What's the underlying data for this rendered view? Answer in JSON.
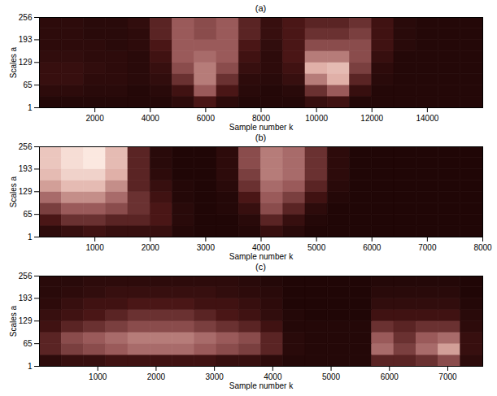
{
  "chart_data": [
    {
      "type": "heatmap",
      "title": "(a)",
      "x_label": "Sample number k",
      "y_label": "Scales a",
      "xlim": [
        0,
        16000
      ],
      "ylim": [
        1,
        256
      ],
      "xticks": [
        2000,
        4000,
        6000,
        8000,
        10000,
        12000,
        14000
      ],
      "yticks": [
        1,
        65,
        129,
        193,
        256
      ],
      "zlim": [
        0,
        1
      ],
      "xbins": [
        0,
        800,
        1600,
        2400,
        3200,
        4000,
        4800,
        5600,
        6400,
        7200,
        8000,
        8800,
        9600,
        10400,
        11200,
        12000,
        12800,
        13600,
        14400,
        15200,
        16000
      ],
      "ybins": [
        1,
        33,
        65,
        97,
        129,
        161,
        193,
        225,
        256
      ],
      "values": [
        [
          0.05,
          0.05,
          0.05,
          0.05,
          0.05,
          0.05,
          0.1,
          0.25,
          0.1,
          0.05,
          0.05,
          0.05,
          0.15,
          0.2,
          0.05,
          0.05,
          0.05,
          0.05,
          0.05,
          0.05
        ],
        [
          0.1,
          0.1,
          0.08,
          0.08,
          0.05,
          0.08,
          0.2,
          0.5,
          0.25,
          0.08,
          0.05,
          0.08,
          0.35,
          0.5,
          0.15,
          0.05,
          0.05,
          0.05,
          0.05,
          0.05
        ],
        [
          0.15,
          0.15,
          0.1,
          0.1,
          0.08,
          0.12,
          0.35,
          0.6,
          0.35,
          0.1,
          0.08,
          0.15,
          0.6,
          0.75,
          0.3,
          0.08,
          0.05,
          0.05,
          0.05,
          0.05
        ],
        [
          0.15,
          0.15,
          0.12,
          0.1,
          0.08,
          0.15,
          0.45,
          0.6,
          0.45,
          0.15,
          0.1,
          0.2,
          0.75,
          0.8,
          0.4,
          0.1,
          0.05,
          0.05,
          0.05,
          0.05
        ],
        [
          0.12,
          0.12,
          0.1,
          0.1,
          0.08,
          0.2,
          0.5,
          0.55,
          0.5,
          0.2,
          0.1,
          0.25,
          0.6,
          0.6,
          0.45,
          0.15,
          0.05,
          0.05,
          0.05,
          0.05
        ],
        [
          0.1,
          0.1,
          0.1,
          0.08,
          0.1,
          0.25,
          0.5,
          0.5,
          0.5,
          0.25,
          0.12,
          0.25,
          0.45,
          0.45,
          0.45,
          0.2,
          0.08,
          0.05,
          0.05,
          0.05
        ],
        [
          0.1,
          0.1,
          0.08,
          0.08,
          0.1,
          0.3,
          0.5,
          0.45,
          0.5,
          0.3,
          0.15,
          0.25,
          0.35,
          0.35,
          0.4,
          0.2,
          0.08,
          0.05,
          0.05,
          0.05
        ],
        [
          0.1,
          0.1,
          0.08,
          0.08,
          0.12,
          0.3,
          0.5,
          0.45,
          0.5,
          0.3,
          0.15,
          0.25,
          0.3,
          0.3,
          0.35,
          0.2,
          0.08,
          0.05,
          0.05,
          0.05
        ]
      ]
    },
    {
      "type": "heatmap",
      "title": "(b)",
      "x_label": "Sample number k",
      "y_label": "Scales a",
      "xlim": [
        0,
        8000
      ],
      "ylim": [
        1,
        256
      ],
      "xticks": [
        1000,
        2000,
        3000,
        4000,
        5000,
        6000,
        7000,
        8000
      ],
      "yticks": [
        1,
        65,
        129,
        193,
        256
      ],
      "zlim": [
        0,
        1
      ],
      "xbins": [
        0,
        400,
        800,
        1200,
        1600,
        2000,
        2400,
        2800,
        3200,
        3600,
        4000,
        4400,
        4800,
        5200,
        5600,
        6000,
        6400,
        6800,
        7200,
        7600,
        8000
      ],
      "ybins": [
        1,
        33,
        65,
        97,
        129,
        161,
        193,
        225,
        256
      ],
      "values": [
        [
          0.1,
          0.15,
          0.2,
          0.15,
          0.15,
          0.15,
          0.05,
          0.03,
          0.03,
          0.05,
          0.15,
          0.08,
          0.03,
          0.03,
          0.03,
          0.03,
          0.03,
          0.03,
          0.03,
          0.03
        ],
        [
          0.25,
          0.35,
          0.35,
          0.3,
          0.3,
          0.25,
          0.08,
          0.03,
          0.03,
          0.08,
          0.3,
          0.15,
          0.05,
          0.03,
          0.03,
          0.03,
          0.03,
          0.03,
          0.03,
          0.03
        ],
        [
          0.4,
          0.5,
          0.5,
          0.45,
          0.35,
          0.25,
          0.08,
          0.03,
          0.05,
          0.15,
          0.45,
          0.3,
          0.1,
          0.03,
          0.03,
          0.03,
          0.03,
          0.03,
          0.03,
          0.03
        ],
        [
          0.55,
          0.65,
          0.65,
          0.55,
          0.35,
          0.2,
          0.05,
          0.03,
          0.05,
          0.25,
          0.5,
          0.4,
          0.2,
          0.05,
          0.03,
          0.03,
          0.03,
          0.03,
          0.03,
          0.03
        ],
        [
          0.7,
          0.8,
          0.8,
          0.65,
          0.3,
          0.15,
          0.05,
          0.03,
          0.08,
          0.35,
          0.55,
          0.5,
          0.3,
          0.08,
          0.03,
          0.03,
          0.03,
          0.03,
          0.03,
          0.03
        ],
        [
          0.8,
          0.9,
          0.9,
          0.75,
          0.3,
          0.1,
          0.03,
          0.03,
          0.1,
          0.4,
          0.6,
          0.55,
          0.35,
          0.1,
          0.03,
          0.03,
          0.03,
          0.03,
          0.03,
          0.03
        ],
        [
          0.85,
          0.95,
          1,
          0.8,
          0.3,
          0.08,
          0.03,
          0.03,
          0.1,
          0.45,
          0.6,
          0.55,
          0.35,
          0.1,
          0.03,
          0.03,
          0.03,
          0.03,
          0.03,
          0.03
        ],
        [
          0.85,
          0.95,
          1,
          0.8,
          0.3,
          0.08,
          0.03,
          0.03,
          0.1,
          0.45,
          0.6,
          0.55,
          0.35,
          0.1,
          0.03,
          0.03,
          0.03,
          0.03,
          0.03,
          0.03
        ]
      ]
    },
    {
      "type": "heatmap",
      "title": "(c)",
      "x_label": "Sample number k",
      "y_label": "Scales a",
      "xlim": [
        0,
        7600
      ],
      "ylim": [
        1,
        256
      ],
      "xticks": [
        1000,
        2000,
        3000,
        4000,
        5000,
        6000,
        7000
      ],
      "yticks": [
        1,
        65,
        129,
        193,
        256
      ],
      "zlim": [
        0,
        1
      ],
      "xbins": [
        0,
        380,
        760,
        1140,
        1520,
        1900,
        2280,
        2660,
        3040,
        3420,
        3800,
        4180,
        4560,
        4940,
        5320,
        5700,
        6080,
        6460,
        6840,
        7220,
        7600
      ],
      "ybins": [
        1,
        33,
        65,
        97,
        129,
        161,
        193,
        225,
        256
      ],
      "values": [
        [
          0.1,
          0.15,
          0.15,
          0.2,
          0.2,
          0.2,
          0.2,
          0.2,
          0.15,
          0.15,
          0.1,
          0.05,
          0.05,
          0.05,
          0.05,
          0.3,
          0.3,
          0.35,
          0.45,
          0.1
        ],
        [
          0.3,
          0.4,
          0.45,
          0.5,
          0.55,
          0.55,
          0.55,
          0.5,
          0.45,
          0.4,
          0.3,
          0.08,
          0.05,
          0.05,
          0.05,
          0.55,
          0.4,
          0.55,
          0.7,
          0.15
        ],
        [
          0.3,
          0.45,
          0.5,
          0.55,
          0.6,
          0.6,
          0.6,
          0.55,
          0.5,
          0.45,
          0.3,
          0.08,
          0.05,
          0.05,
          0.05,
          0.5,
          0.35,
          0.5,
          0.55,
          0.15
        ],
        [
          0.2,
          0.3,
          0.35,
          0.4,
          0.45,
          0.45,
          0.45,
          0.4,
          0.35,
          0.3,
          0.2,
          0.05,
          0.05,
          0.05,
          0.05,
          0.35,
          0.3,
          0.35,
          0.35,
          0.1
        ],
        [
          0.15,
          0.2,
          0.25,
          0.3,
          0.35,
          0.35,
          0.35,
          0.3,
          0.25,
          0.2,
          0.12,
          0.05,
          0.03,
          0.03,
          0.03,
          0.2,
          0.2,
          0.2,
          0.2,
          0.08
        ],
        [
          0.1,
          0.15,
          0.2,
          0.2,
          0.25,
          0.25,
          0.25,
          0.2,
          0.2,
          0.15,
          0.1,
          0.03,
          0.03,
          0.03,
          0.03,
          0.12,
          0.12,
          0.12,
          0.12,
          0.05
        ],
        [
          0.08,
          0.1,
          0.12,
          0.15,
          0.15,
          0.15,
          0.15,
          0.15,
          0.12,
          0.1,
          0.08,
          0.03,
          0.03,
          0.03,
          0.03,
          0.08,
          0.08,
          0.08,
          0.08,
          0.03
        ],
        [
          0.08,
          0.08,
          0.1,
          0.1,
          0.1,
          0.1,
          0.1,
          0.1,
          0.1,
          0.08,
          0.05,
          0.03,
          0.03,
          0.03,
          0.03,
          0.05,
          0.05,
          0.05,
          0.05,
          0.03
        ]
      ]
    }
  ]
}
